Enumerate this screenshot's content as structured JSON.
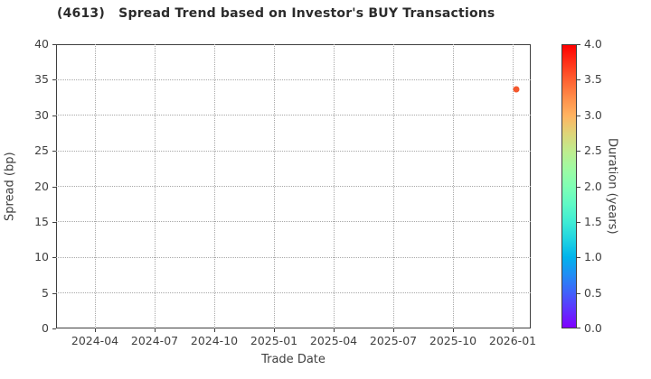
{
  "title": "(4613)   Spread Trend based on Investor's BUY Transactions",
  "chart_data": {
    "type": "scatter",
    "title": "(4613)   Spread Trend based on Investor's BUY Transactions",
    "xlabel": "Trade Date",
    "ylabel": "Spread (bp)",
    "x_tick_labels": [
      "2024-04",
      "2024-07",
      "2024-10",
      "2025-01",
      "2025-04",
      "2025-07",
      "2025-10",
      "2026-01"
    ],
    "x_tick_interval": "3 months",
    "y_ticks": [
      0,
      5,
      10,
      15,
      20,
      25,
      30,
      35,
      40
    ],
    "ylim": [
      0,
      40
    ],
    "grid": "dotted",
    "legend_position": "none",
    "points": [
      {
        "trade_date": "2026-01-07",
        "spread_bp": 33.6,
        "duration_years": 3.5
      }
    ],
    "colorbar": {
      "label": "Duration (years)",
      "tick_labels": [
        "4.0",
        "3.5",
        "3.0",
        "2.5",
        "2.0",
        "1.5",
        "1.0",
        "0.5",
        "0.0"
      ],
      "min": 0.0,
      "max": 4.0,
      "colormap": "rainbow"
    }
  },
  "colors": {
    "background": "#ffffff",
    "point": "#f4582e",
    "axis": "#3f3f3f",
    "grid": "#a8a8a8",
    "tick_text": "#404040",
    "title_text": "#2b2b2b"
  }
}
